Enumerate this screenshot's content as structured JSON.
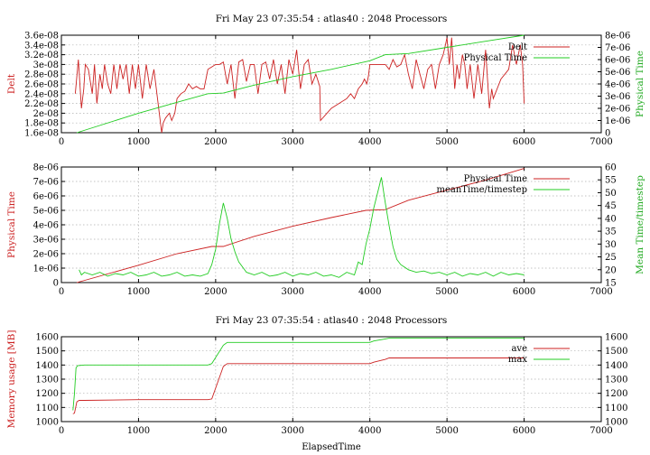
{
  "chart_data": [
    {
      "type": "line",
      "title": "Fri May 23 07:35:54 : atlas40 : 2048 Processors",
      "xlabel": "",
      "ylabel": "Delt",
      "y2label": "Physical Time",
      "xlim": [
        0,
        7000
      ],
      "ylim": [
        1.6e-08,
        3.6e-08
      ],
      "y2lim": [
        0,
        8e-06
      ],
      "xticks": [
        "0",
        "1000",
        "2000",
        "3000",
        "4000",
        "5000",
        "6000",
        "7000"
      ],
      "yticks": [
        "1.6e-08",
        "1.8e-08",
        "2e-08",
        "2.2e-08",
        "2.4e-08",
        "2.6e-08",
        "2.8e-08",
        "3e-08",
        "3.2e-08",
        "3.4e-08",
        "3.6e-08"
      ],
      "y2ticks": [
        "0",
        "1e-06",
        "2e-06",
        "3e-06",
        "4e-06",
        "5e-06",
        "6e-06",
        "7e-06",
        "8e-06"
      ],
      "legend": "top-right",
      "grid": true,
      "colors": {
        "series1": "#cc2222",
        "series2": "#22cc22"
      },
      "series": [
        {
          "name": "Delt",
          "axis": "y",
          "x": [
            180,
            220,
            260,
            290,
            310,
            350,
            400,
            430,
            460,
            500,
            530,
            560,
            600,
            640,
            680,
            720,
            760,
            800,
            840,
            880,
            920,
            960,
            1000,
            1050,
            1100,
            1150,
            1200,
            1300,
            1320,
            1350,
            1400,
            1430,
            1470,
            1500,
            1550,
            1600,
            1650,
            1700,
            1750,
            1800,
            1850,
            1900,
            1950,
            2000,
            2050,
            2100,
            2150,
            2200,
            2250,
            2300,
            2350,
            2400,
            2450,
            2500,
            2550,
            2600,
            2650,
            2700,
            2750,
            2800,
            2850,
            2900,
            2950,
            3000,
            3050,
            3100,
            3150,
            3200,
            3250,
            3300,
            3350,
            3360,
            3500,
            3700,
            3750,
            3800,
            3850,
            3900,
            3930,
            3960,
            3980,
            4000,
            4200,
            4250,
            4300,
            4350,
            4400,
            4450,
            4500,
            4550,
            4600,
            4650,
            4700,
            4750,
            4800,
            4850,
            4900,
            4950,
            4980,
            5000,
            5030,
            5060,
            5100,
            5130,
            5160,
            5200,
            5230,
            5260,
            5300,
            5350,
            5400,
            5450,
            5500,
            5550,
            5580,
            5600,
            5700,
            5800,
            5850,
            5900,
            5950,
            5980,
            6000
          ],
          "y": [
            2.4e-08,
            3.1e-08,
            2.1e-08,
            2.5e-08,
            3e-08,
            2.9e-08,
            2.4e-08,
            3e-08,
            2.2e-08,
            2.8e-08,
            2.5e-08,
            3e-08,
            2.6e-08,
            2.4e-08,
            3e-08,
            2.5e-08,
            3e-08,
            2.7e-08,
            3e-08,
            2.4e-08,
            3e-08,
            2.5e-08,
            3e-08,
            2.3e-08,
            3e-08,
            2.5e-08,
            2.9e-08,
            1.6e-08,
            1.8e-08,
            1.9e-08,
            2e-08,
            1.85e-08,
            2e-08,
            2.3e-08,
            2.4e-08,
            2.45e-08,
            2.6e-08,
            2.5e-08,
            2.55e-08,
            2.5e-08,
            2.5e-08,
            2.9e-08,
            2.95e-08,
            3e-08,
            3e-08,
            3.05e-08,
            2.6e-08,
            3e-08,
            2.3e-08,
            3.05e-08,
            3.1e-08,
            2.65e-08,
            3e-08,
            3e-08,
            2.4e-08,
            3e-08,
            3.05e-08,
            2.7e-08,
            3.1e-08,
            2.6e-08,
            3e-08,
            2.4e-08,
            3.1e-08,
            2.8e-08,
            3.3e-08,
            2.5e-08,
            3e-08,
            3.1e-08,
            2.6e-08,
            2.8e-08,
            2.55e-08,
            1.85e-08,
            2.1e-08,
            2.3e-08,
            2.4e-08,
            2.3e-08,
            2.5e-08,
            2.6e-08,
            2.7e-08,
            2.6e-08,
            2.75e-08,
            3e-08,
            3e-08,
            2.9e-08,
            3.1e-08,
            2.95e-08,
            3e-08,
            3.2e-08,
            2.8e-08,
            2.5e-08,
            3.1e-08,
            2.8e-08,
            2.5e-08,
            2.9e-08,
            3e-08,
            2.5e-08,
            3e-08,
            3.2e-08,
            3.4e-08,
            3.55e-08,
            3e-08,
            3.55e-08,
            2.5e-08,
            3e-08,
            2.7e-08,
            3.2e-08,
            3e-08,
            2.5e-08,
            3e-08,
            2.3e-08,
            3e-08,
            2.4e-08,
            3.3e-08,
            2.1e-08,
            2.5e-08,
            2.3e-08,
            2.7e-08,
            2.9e-08,
            3.4e-08,
            3e-08,
            3.4e-08,
            3e-08,
            2.2e-08
          ]
        },
        {
          "name": "Physical Time",
          "axis": "y2",
          "x": [
            200,
            1000,
            1500,
            1900,
            2100,
            2500,
            3000,
            3500,
            4000,
            4200,
            4500,
            5000,
            5500,
            6000
          ],
          "y": [
            0,
            1.6e-06,
            2.5e-06,
            3.2e-06,
            3.25e-06,
            3.9e-06,
            4.6e-06,
            5.2e-06,
            5.9e-06,
            6.4e-06,
            6.5e-06,
            7e-06,
            7.5e-06,
            8e-06
          ]
        }
      ]
    },
    {
      "type": "line",
      "title": "",
      "xlabel": "",
      "ylabel": "Physical Time",
      "y2label": "Mean Time/timestep",
      "xlim": [
        0,
        7000
      ],
      "ylim": [
        0,
        8e-06
      ],
      "y2lim": [
        15,
        60
      ],
      "xticks": [
        "0",
        "1000",
        "2000",
        "3000",
        "4000",
        "5000",
        "6000",
        "7000"
      ],
      "yticks": [
        "0",
        "1e-06",
        "2e-06",
        "3e-06",
        "4e-06",
        "5e-06",
        "6e-06",
        "7e-06",
        "8e-06"
      ],
      "y2ticks": [
        "15",
        "20",
        "25",
        "30",
        "35",
        "40",
        "45",
        "50",
        "55",
        "60"
      ],
      "legend": "top-right",
      "grid": true,
      "colors": {
        "series1": "#cc2222",
        "series2": "#22cc22"
      },
      "series": [
        {
          "name": "Physical Time",
          "axis": "y",
          "x": [
            200,
            1000,
            1500,
            1950,
            2100,
            2500,
            3000,
            3500,
            3950,
            4200,
            4500,
            5000,
            5500,
            6000
          ],
          "y": [
            0,
            1.2e-06,
            2e-06,
            2.5e-06,
            2.5e-06,
            3.2e-06,
            3.9e-06,
            4.5e-06,
            5e-06,
            5.05e-06,
            5.7e-06,
            6.4e-06,
            7.1e-06,
            7.9e-06
          ],
          "y2": []
        },
        {
          "name": "meanTime/timestep",
          "axis": "y2",
          "x": [
            230,
            260,
            300,
            400,
            500,
            600,
            700,
            800,
            900,
            1000,
            1100,
            1200,
            1300,
            1400,
            1500,
            1600,
            1700,
            1800,
            1900,
            1950,
            2000,
            2050,
            2100,
            2150,
            2200,
            2250,
            2300,
            2350,
            2400,
            2500,
            2600,
            2700,
            2800,
            2900,
            3000,
            3100,
            3200,
            3300,
            3400,
            3500,
            3600,
            3700,
            3800,
            3850,
            3900,
            3950,
            4000,
            4050,
            4100,
            4150,
            4200,
            4250,
            4300,
            4350,
            4400,
            4500,
            4600,
            4700,
            4800,
            4900,
            5000,
            5100,
            5200,
            5300,
            5400,
            5500,
            5600,
            5700,
            5800,
            5900,
            6000
          ],
          "y": [
            20,
            18,
            19,
            18,
            19,
            17.5,
            18.5,
            18,
            19,
            17.5,
            18,
            19,
            17.5,
            18,
            19,
            17.5,
            18,
            17.5,
            18.5,
            22,
            28,
            38,
            46,
            40,
            32,
            27,
            23,
            21,
            19,
            18,
            19,
            17.5,
            18,
            19,
            17.5,
            18.5,
            18,
            19,
            17.5,
            18,
            17,
            19,
            18,
            23,
            22,
            30,
            36,
            44,
            50,
            56,
            46,
            37,
            29,
            24,
            22,
            20,
            19,
            19.5,
            18.5,
            19,
            18,
            19,
            17.5,
            18.5,
            18,
            19,
            17.5,
            19,
            18,
            18.5,
            18
          ]
        }
      ]
    },
    {
      "type": "line",
      "title": "Fri May 23 07:35:54 : atlas40 : 2048 Processors",
      "xlabel": "ElapsedTime",
      "ylabel": "Memory usage [MB]",
      "y2label": "",
      "xlim": [
        0,
        7000
      ],
      "ylim": [
        1000,
        1600
      ],
      "y2lim": [
        1000,
        1600
      ],
      "xticks": [
        "0",
        "1000",
        "2000",
        "3000",
        "4000",
        "5000",
        "6000",
        "7000"
      ],
      "yticks": [
        "1000",
        "1100",
        "1200",
        "1300",
        "1400",
        "1500",
        "1600"
      ],
      "y2ticks": [
        "1000",
        "1100",
        "1200",
        "1300",
        "1400",
        "1500",
        "1600"
      ],
      "legend": "top-right",
      "grid": true,
      "colors": {
        "series1": "#cc2222",
        "series2": "#22cc22"
      },
      "series": [
        {
          "name": "ave",
          "axis": "y",
          "x": [
            150,
            170,
            200,
            230,
            300,
            1000,
            1900,
            1950,
            2100,
            2150,
            2200,
            4000,
            4050,
            4200,
            4250,
            6000
          ],
          "y": [
            1055,
            1060,
            1140,
            1150,
            1150,
            1155,
            1155,
            1160,
            1390,
            1410,
            1410,
            1410,
            1420,
            1440,
            1450,
            1450
          ]
        },
        {
          "name": "max",
          "axis": "y",
          "x": [
            150,
            170,
            190,
            210,
            300,
            1000,
            1900,
            1950,
            2100,
            2150,
            2200,
            4000,
            4050,
            4200,
            4250,
            6000
          ],
          "y": [
            1080,
            1200,
            1380,
            1395,
            1400,
            1400,
            1400,
            1410,
            1540,
            1560,
            1560,
            1560,
            1570,
            1585,
            1590,
            1590
          ]
        }
      ]
    }
  ]
}
